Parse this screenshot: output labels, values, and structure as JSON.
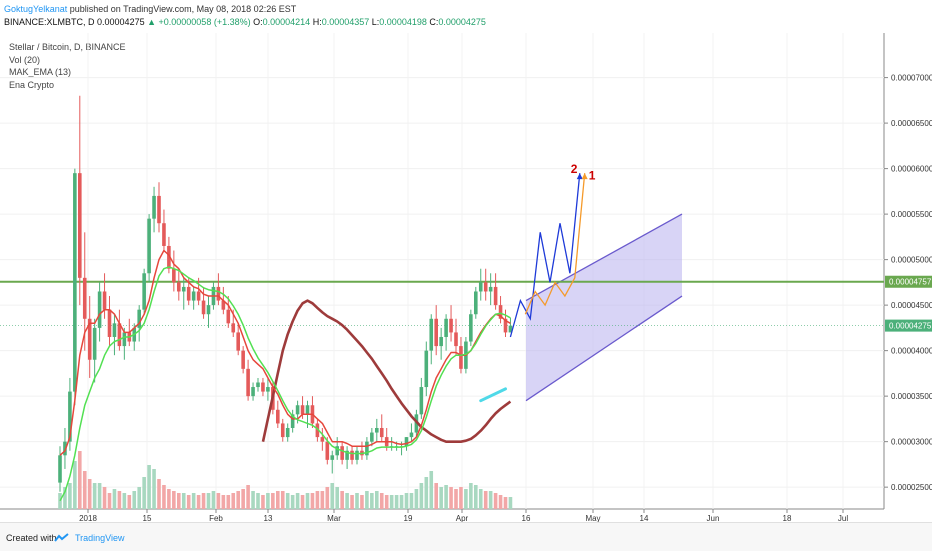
{
  "header": {
    "author": "GoktugYelkanat",
    "published": "published on TradingView.com, May 08, 2018 02:26 EST"
  },
  "symbol_line": {
    "symbol": "BINANCE:XLMBTC, D",
    "last": "0.00004275",
    "change": "▲ +0.00000058 (+1.38%)",
    "open_label": "O:",
    "open": "0.00004214",
    "high_label": "H:",
    "high": "0.00004357",
    "low_label": "L:",
    "low": "0.00004198",
    "close_label": "C:",
    "close": "0.00004275"
  },
  "legend": {
    "title": "Stellar / Bitcoin, D, BINANCE",
    "vol": "Vol (20)",
    "ema": "MAK_EMA (13)",
    "crypto": "Ena Crypto"
  },
  "footer": {
    "created": "Created with",
    "brand": "TradingView"
  },
  "colors": {
    "up": "#4cb07a",
    "down": "#e45a5a",
    "vol_up": "#a8d8c0",
    "vol_down": "#f2a7a7",
    "ema_fast": "#e6473c",
    "ema_slow": "#9e3b3b",
    "ema_green": "#52e052",
    "resistance": "#6aa84f",
    "channel_fill": "#b8b0ee",
    "channel_line": "#6a5acd",
    "proj_blue": "#1e3ad8",
    "proj_orange": "#f59a2a",
    "cyan": "#4fd9e8",
    "label_red": "#cc0000"
  },
  "chart_data": {
    "type": "candlestick",
    "x_axis_labels": [
      "2018",
      "15",
      "Feb",
      "13",
      "Mar",
      "19",
      "Apr",
      "16",
      "May",
      "14",
      "Jun",
      "18",
      "Jul"
    ],
    "y_tick_labels": [
      "0.00007000",
      "0.00006500",
      "0.00006000",
      "0.00005500",
      "0.00005000",
      "0.00004500",
      "0.00004000",
      "0.00003500",
      "0.00003000",
      "0.00002500"
    ],
    "ylim": [
      2.26e-05,
      7.49e-05
    ],
    "price_markers": [
      {
        "label": "0.00004757",
        "value": 4.757e-05,
        "color": "#6aa84f"
      },
      {
        "label": "0.00004275",
        "value": 4.275e-05,
        "color": "#4cb07a"
      }
    ],
    "resistance_level": 4.757e-05,
    "annotations": [
      "2",
      "1"
    ],
    "grid": true,
    "candles": [
      [
        2.55e-05,
        2.95e-05,
        2.45e-05,
        2.85e-05
      ],
      [
        2.85e-05,
        3.15e-05,
        2.7e-05,
        3e-05
      ],
      [
        3e-05,
        3.7e-05,
        2.9e-05,
        3.55e-05
      ],
      [
        3.55e-05,
        6e-05,
        3.4e-05,
        5.95e-05
      ],
      [
        5.95e-05,
        6.8e-05,
        4.5e-05,
        4.8e-05
      ],
      [
        4.8e-05,
        5.3e-05,
        4e-05,
        4.35e-05
      ],
      [
        4.35e-05,
        4.6e-05,
        3.7e-05,
        3.9e-05
      ],
      [
        3.9e-05,
        4.35e-05,
        3.65e-05,
        4.25e-05
      ],
      [
        4.25e-05,
        4.75e-05,
        4.1e-05,
        4.65e-05
      ],
      [
        4.65e-05,
        4.85e-05,
        4.35e-05,
        4.45e-05
      ],
      [
        4.45e-05,
        4.6e-05,
        4.05e-05,
        4.15e-05
      ],
      [
        4.15e-05,
        4.4e-05,
        3.95e-05,
        4.3e-05
      ],
      [
        4.3e-05,
        4.45e-05,
        4e-05,
        4.05e-05
      ],
      [
        4.05e-05,
        4.25e-05,
        3.9e-05,
        4.2e-05
      ],
      [
        4.2e-05,
        4.35e-05,
        4.05e-05,
        4.1e-05
      ],
      [
        4.1e-05,
        4.3e-05,
        4e-05,
        4.25e-05
      ],
      [
        4.25e-05,
        4.5e-05,
        4.1e-05,
        4.45e-05
      ],
      [
        4.45e-05,
        4.9e-05,
        4.4e-05,
        4.85e-05
      ],
      [
        4.85e-05,
        5.5e-05,
        4.75e-05,
        5.45e-05
      ],
      [
        5.45e-05,
        5.8e-05,
        5.3e-05,
        5.7e-05
      ],
      [
        5.7e-05,
        5.85e-05,
        5.3e-05,
        5.4e-05
      ],
      [
        5.4e-05,
        5.55e-05,
        5.1e-05,
        5.15e-05
      ],
      [
        5.15e-05,
        5.25e-05,
        4.85e-05,
        4.9e-05
      ],
      [
        4.9e-05,
        5.1e-05,
        4.65e-05,
        4.75e-05
      ],
      [
        4.75e-05,
        4.9e-05,
        4.55e-05,
        4.65e-05
      ],
      [
        4.65e-05,
        4.8e-05,
        4.45e-05,
        4.7e-05
      ],
      [
        4.7e-05,
        4.8e-05,
        4.5e-05,
        4.55e-05
      ],
      [
        4.55e-05,
        4.7e-05,
        4.45e-05,
        4.65e-05
      ],
      [
        4.65e-05,
        4.8e-05,
        4.5e-05,
        4.55e-05
      ],
      [
        4.55e-05,
        4.7e-05,
        4.35e-05,
        4.4e-05
      ],
      [
        4.4e-05,
        4.6e-05,
        4.25e-05,
        4.5e-05
      ],
      [
        4.5e-05,
        4.75e-05,
        4.45e-05,
        4.7e-05
      ],
      [
        4.7e-05,
        4.85e-05,
        4.5e-05,
        4.55e-05
      ],
      [
        4.55e-05,
        4.7e-05,
        4.4e-05,
        4.45e-05
      ],
      [
        4.45e-05,
        4.6e-05,
        4.25e-05,
        4.3e-05
      ],
      [
        4.3e-05,
        4.45e-05,
        4.15e-05,
        4.2e-05
      ],
      [
        4.2e-05,
        4.3e-05,
        3.95e-05,
        4e-05
      ],
      [
        4e-05,
        4.05e-05,
        3.75e-05,
        3.8e-05
      ],
      [
        3.8e-05,
        3.9e-05,
        3.45e-05,
        3.5e-05
      ],
      [
        3.5e-05,
        3.65e-05,
        3.45e-05,
        3.6e-05
      ],
      [
        3.6e-05,
        3.7e-05,
        3.55e-05,
        3.65e-05
      ],
      [
        3.65e-05,
        3.7e-05,
        3.5e-05,
        3.55e-05
      ],
      [
        3.55e-05,
        3.7e-05,
        3.45e-05,
        3.6e-05
      ],
      [
        3.6e-05,
        3.65e-05,
        3.3e-05,
        3.35e-05
      ],
      [
        3.35e-05,
        3.45e-05,
        3.15e-05,
        3.2e-05
      ],
      [
        3.2e-05,
        3.25e-05,
        3e-05,
        3.05e-05
      ],
      [
        3.05e-05,
        3.2e-05,
        3e-05,
        3.15e-05
      ],
      [
        3.15e-05,
        3.35e-05,
        3.1e-05,
        3.3e-05
      ],
      [
        3.3e-05,
        3.45e-05,
        3.2e-05,
        3.4e-05
      ],
      [
        3.4e-05,
        3.5e-05,
        3.25e-05,
        3.3e-05
      ],
      [
        3.3e-05,
        3.45e-05,
        3.15e-05,
        3.4e-05
      ],
      [
        3.4e-05,
        3.5e-05,
        3.15e-05,
        3.2e-05
      ],
      [
        3.2e-05,
        3.25e-05,
        3e-05,
        3.05e-05
      ],
      [
        3.05e-05,
        3.15e-05,
        2.9e-05,
        3e-05
      ],
      [
        3e-05,
        3.05e-05,
        2.75e-05,
        2.8e-05
      ],
      [
        2.8e-05,
        2.9e-05,
        2.65e-05,
        2.85e-05
      ],
      [
        2.85e-05,
        3.05e-05,
        2.8e-05,
        2.95e-05
      ],
      [
        2.95e-05,
        3e-05,
        2.75e-05,
        2.8e-05
      ],
      [
        2.8e-05,
        2.95e-05,
        2.7e-05,
        2.9e-05
      ],
      [
        2.9e-05,
        2.95e-05,
        2.75e-05,
        2.8e-05
      ],
      [
        2.8e-05,
        2.95e-05,
        2.75e-05,
        2.9e-05
      ],
      [
        2.9e-05,
        3e-05,
        2.8e-05,
        2.85e-05
      ],
      [
        2.85e-05,
        3.05e-05,
        2.8e-05,
        3e-05
      ],
      [
        3e-05,
        3.15e-05,
        2.95e-05,
        3.1e-05
      ],
      [
        3.1e-05,
        3.25e-05,
        3e-05,
        3.15e-05
      ],
      [
        3.15e-05,
        3.3e-05,
        3e-05,
        3.05e-05
      ],
      [
        3.05e-05,
        3.15e-05,
        2.9e-05,
        2.95e-05
      ],
      [
        2.95e-05,
        3.05e-05,
        2.9e-05,
        2.95e-05
      ],
      [
        2.95e-05,
        3e-05,
        2.9e-05,
        2.95e-05
      ],
      [
        2.95e-05,
        3e-05,
        2.85e-05,
        2.95e-05
      ],
      [
        2.95e-05,
        3.05e-05,
        2.9e-05,
        3.05e-05
      ],
      [
        3.05e-05,
        3.2e-05,
        3e-05,
        3.1e-05
      ],
      [
        3.1e-05,
        3.35e-05,
        3.05e-05,
        3.3e-05
      ],
      [
        3.3e-05,
        3.7e-05,
        3.25e-05,
        3.6e-05
      ],
      [
        3.6e-05,
        4.1e-05,
        3.5e-05,
        4e-05
      ],
      [
        4e-05,
        4.4e-05,
        3.85e-05,
        4.35e-05
      ],
      [
        4.35e-05,
        4.5e-05,
        3.95e-05,
        4.05e-05
      ],
      [
        4.05e-05,
        4.25e-05,
        3.9e-05,
        4.15e-05
      ],
      [
        4.15e-05,
        4.4e-05,
        4e-05,
        4.35e-05
      ],
      [
        4.35e-05,
        4.5e-05,
        4.1e-05,
        4.2e-05
      ],
      [
        4.2e-05,
        4.35e-05,
        3.95e-05,
        4.05e-05
      ],
      [
        4.05e-05,
        4.15e-05,
        3.75e-05,
        3.8e-05
      ],
      [
        3.8e-05,
        4.15e-05,
        3.75e-05,
        4.1e-05
      ],
      [
        4.1e-05,
        4.45e-05,
        4.05e-05,
        4.4e-05
      ],
      [
        4.4e-05,
        4.7e-05,
        4.35e-05,
        4.65e-05
      ],
      [
        4.65e-05,
        4.9e-05,
        4.55e-05,
        4.75e-05
      ],
      [
        4.75e-05,
        4.9e-05,
        4.55e-05,
        4.65e-05
      ],
      [
        4.65e-05,
        4.85e-05,
        4.5e-05,
        4.7e-05
      ],
      [
        4.7e-05,
        4.85e-05,
        4.45e-05,
        4.5e-05
      ],
      [
        4.5e-05,
        4.6e-05,
        4.3e-05,
        4.35e-05
      ],
      [
        4.35e-05,
        4.45e-05,
        4.15e-05,
        4.2e-05
      ],
      [
        4.2e-05,
        4.36e-05,
        4.2e-05,
        4.275e-05
      ]
    ],
    "volumes": [
      8,
      11,
      13,
      24,
      29,
      19,
      15,
      13,
      13,
      11,
      8,
      10,
      9,
      8,
      7,
      9,
      11,
      16,
      22,
      20,
      15,
      12,
      10,
      9,
      8,
      8,
      7,
      8,
      7,
      8,
      8,
      9,
      8,
      7,
      7,
      8,
      9,
      10,
      12,
      9,
      8,
      7,
      8,
      8,
      9,
      9,
      8,
      7,
      8,
      7,
      8,
      8,
      9,
      9,
      11,
      13,
      11,
      9,
      8,
      7,
      8,
      7,
      9,
      8,
      9,
      8,
      7,
      7,
      7,
      7,
      8,
      8,
      10,
      13,
      16,
      19,
      13,
      11,
      12,
      11,
      10,
      11,
      10,
      13,
      12,
      10,
      9,
      9,
      8,
      7,
      6,
      6
    ],
    "ema_fast": [
      2.85e-05,
      2.9e-05,
      3.05e-05,
      3.45e-05,
      3.95e-05,
      4.2e-05,
      4.3e-05,
      4.3e-05,
      4.4e-05,
      4.45e-05,
      4.45e-05,
      4.4e-05,
      4.3e-05,
      4.2e-05,
      4.2e-05,
      4.25e-05,
      4.3e-05,
      4.4e-05,
      4.55e-05,
      4.8e-05,
      5e-05,
      5.1e-05,
      5.05e-05,
      4.95e-05,
      4.9e-05,
      4.8e-05,
      4.75e-05,
      4.7e-05,
      4.68e-05,
      4.62e-05,
      4.6e-05,
      4.6e-05,
      4.6e-05,
      4.55e-05,
      4.5e-05,
      4.4e-05,
      4.3e-05,
      4.15e-05,
      4e-05,
      3.9e-05,
      3.85e-05,
      3.8e-05,
      3.7e-05,
      3.6e-05,
      3.52e-05,
      3.4e-05,
      3.3e-05,
      3.25e-05,
      3.25e-05,
      3.3e-05,
      3.3e-05,
      3.3e-05,
      3.25e-05,
      3.2e-05,
      3.1e-05,
      3e-05,
      3e-05,
      3e-05,
      2.98e-05,
      2.95e-05,
      2.95e-05,
      2.95e-05,
      2.95e-05,
      2.97e-05,
      3e-05,
      3e-05,
      3e-05,
      3e-05,
      2.98e-05,
      2.97e-05,
      2.98e-05,
      3e-05,
      3.05e-05,
      3.18e-05,
      3.35e-05,
      3.55e-05,
      3.7e-05,
      3.8e-05,
      3.9e-05,
      3.98e-05,
      3.98e-05,
      3.95e-05,
      3.95e-05,
      4e-05,
      4.1e-05,
      4.2e-05,
      4.28e-05,
      4.35e-05,
      4.4e-05,
      4.38e-05,
      4.33e-05,
      4.3e-05
    ],
    "ema_slow_x_range": [
      41,
      91
    ],
    "ema_slow": [
      3e-05,
      3.25e-05,
      3.5e-05,
      3.75e-05,
      4e-05,
      4.18e-05,
      4.32e-05,
      4.44e-05,
      4.52e-05,
      4.55e-05,
      4.52e-05,
      4.47e-05,
      4.42e-05,
      4.38e-05,
      4.35e-05,
      4.32e-05,
      4.28e-05,
      4.23e-05,
      4.17e-05,
      4.11e-05,
      4.05e-05,
      3.98e-05,
      3.91e-05,
      3.83e-05,
      3.75e-05,
      3.67e-05,
      3.58e-05,
      3.5e-05,
      3.42e-05,
      3.35e-05,
      3.28e-05,
      3.22e-05,
      3.16e-05,
      3.12e-05,
      3.08e-05,
      3.05e-05,
      3.02e-05,
      3e-05,
      3e-05,
      3e-05,
      3e-05,
      3.01e-05,
      3.03e-05,
      3.07e-05,
      3.12e-05,
      3.18e-05,
      3.25e-05,
      3.31e-05,
      3.36e-05,
      3.4e-05,
      3.44e-05
    ],
    "ema_green": [
      2.35e-05,
      2.45e-05,
      2.62e-05,
      2.85e-05,
      3.15e-05,
      3.4e-05,
      3.55e-05,
      3.7e-05,
      3.8e-05,
      3.95e-05,
      4.05e-05,
      4.1e-05,
      4.12e-05,
      4.15e-05,
      4.15e-05,
      4.18e-05,
      4.22e-05,
      4.3e-05,
      4.45e-05,
      4.65e-05,
      4.82e-05,
      4.9e-05,
      4.92e-05,
      4.9e-05,
      4.88e-05,
      4.84e-05,
      4.8e-05,
      4.77e-05,
      4.73e-05,
      4.69e-05,
      4.67e-05,
      4.66e-05,
      4.65e-05,
      4.62e-05,
      4.57e-05,
      4.49e-05,
      4.4e-05,
      4.28e-05,
      4.14e-05,
      4.02e-05,
      3.92e-05,
      3.84e-05,
      3.76e-05,
      3.66e-05,
      3.56e-05,
      3.45e-05,
      3.35e-05,
      3.28e-05,
      3.24e-05,
      3.22e-05,
      3.2e-05,
      3.18e-05,
      3.14e-05,
      3.08e-05,
      3.01e-05,
      2.95e-05,
      2.92e-05,
      2.9e-05,
      2.88e-05,
      2.87e-05,
      2.87e-05,
      2.87e-05,
      2.88e-05,
      2.9e-05,
      2.93e-05,
      2.94e-05,
      2.94e-05,
      2.94e-05,
      2.94e-05,
      2.94e-05,
      2.95e-05,
      2.97e-05,
      3.02e-05,
      3.12e-05,
      3.27e-05,
      3.45e-05,
      3.61e-05,
      3.73e-05,
      3.83e-05,
      3.91e-05,
      3.95e-05,
      3.95e-05,
      3.96e-05,
      4e-05,
      4.08e-05,
      4.18e-05,
      4.27e-05,
      4.34e-05,
      4.4e-05,
      4.41e-05,
      4.39e-05,
      4.36e-05
    ],
    "projections": {
      "blue": [
        [
          91,
          4.15e-05
        ],
        [
          93,
          4.55e-05
        ],
        [
          95,
          4.35e-05
        ],
        [
          97,
          5.3e-05
        ],
        [
          99,
          4.75e-05
        ],
        [
          101,
          5.4e-05
        ],
        [
          103,
          4.85e-05
        ],
        [
          105,
          5.95e-05
        ]
      ],
      "orange": [
        [
          93,
          4.4e-05
        ],
        [
          95,
          4.65e-05
        ],
        [
          97,
          4.5e-05
        ],
        [
          99,
          4.75e-05
        ],
        [
          101,
          4.6e-05
        ],
        [
          103,
          4.8e-05
        ],
        [
          105,
          5.95e-05
        ]
      ],
      "cyan": [
        [
          85,
          3.45e-05
        ],
        [
          90,
          3.58e-05
        ]
      ]
    }
  }
}
